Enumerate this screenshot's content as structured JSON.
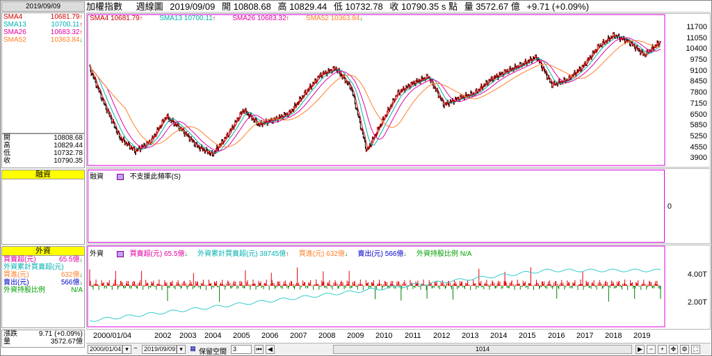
{
  "left": {
    "date": "2019/09/09",
    "sma": [
      {
        "label": "SMA4",
        "value": "10681.79",
        "dir": "up",
        "color": "#cc0000"
      },
      {
        "label": "SMA13",
        "value": "10700.11",
        "dir": "up",
        "color": "#00b0b0"
      },
      {
        "label": "SMA26",
        "value": "10683.32",
        "dir": "up",
        "color": "#e000a0"
      },
      {
        "label": "SMA52",
        "value": "10363.84",
        "dir": "down",
        "color": "#ff7f27"
      }
    ],
    "ohlc": [
      {
        "label": "開",
        "value": "10808.68"
      },
      {
        "label": "高",
        "value": "10829.44"
      },
      {
        "label": "低",
        "value": "10732.78"
      },
      {
        "label": "收",
        "value": "10790.35"
      }
    ],
    "margin_header": "融資",
    "foreign_header": "外資",
    "foreign_rows": [
      {
        "label": "買賣超(元)",
        "value": "65.5億",
        "dir": "down",
        "color": "#e000a0"
      },
      {
        "label": "外資累計買賣超(元)",
        "value": "",
        "dir": "",
        "color": "#00b0b0"
      },
      {
        "label": "買進(元)",
        "value": "632億",
        "dir": "down",
        "color": "#ff7f27"
      },
      {
        "label": "賣出(元)",
        "value": "566億",
        "dir": "down",
        "color": "#0000cc"
      },
      {
        "label": "外資持股比例",
        "value": "N/A",
        "dir": "",
        "color": "#00a000"
      }
    ],
    "change_label": "漲跌",
    "change_value": "9.71 (+0.09%)",
    "volume_label": "量",
    "volume_value": "3572.67億"
  },
  "topbar": {
    "name": "加權指數",
    "period": "週線圖",
    "date": "2019/09/09",
    "open": "開 10808.68",
    "high": "高 10829.44",
    "low": "低 10732.78",
    "close": "收 10790.35 s 點",
    "volume": "量 3572.67 億",
    "change": "+9.71 (+0.09%)"
  },
  "main_legend": [
    {
      "text": "SMA4 10681.79",
      "color": "#cc0000",
      "dir": "up"
    },
    {
      "text": "SMA13 10700.11",
      "color": "#00b0b0",
      "dir": "up"
    },
    {
      "text": "SMA26 10683.32",
      "color": "#e000a0",
      "dir": "up"
    },
    {
      "text": "SMA52 10363.84",
      "color": "#ff7f27",
      "dir": "down"
    }
  ],
  "y_ticks": [
    "11700",
    "11050",
    "10400",
    "9750",
    "9100",
    "8450",
    "7800",
    "7150",
    "6500",
    "5850",
    "5250",
    "4550",
    "3900"
  ],
  "margin_panel": {
    "title": "融資",
    "msg": "不支援此頻率(S)",
    "zero": "0"
  },
  "foreign_panel": {
    "title": "外資",
    "legend": [
      {
        "text": "買賣超(元) 65.5億",
        "color": "#e000a0",
        "dir": "down"
      },
      {
        "text": "外資累計買賣超(元) 38745億",
        "color": "#00b0b0",
        "dir": "up"
      },
      {
        "text": "買進(元) 632億",
        "color": "#ff7f27",
        "dir": "down"
      },
      {
        "text": "賣出(元) 566億",
        "color": "#0000cc",
        "dir": "down"
      },
      {
        "text": "外資持股比例 N/A",
        "color": "#00a000",
        "dir": ""
      }
    ],
    "y_ticks": [
      "4.00T",
      "2.00T"
    ]
  },
  "x_labels": [
    "2000/01/04",
    "2002",
    "2003",
    "2004",
    "2005",
    "2006",
    "2007",
    "2008",
    "2009",
    "2010",
    "2011",
    "2012",
    "2013",
    "2014",
    "2015",
    "2016",
    "2017",
    "2018",
    "2019"
  ],
  "bottom": {
    "start": "2000/01/04",
    "end": "2019/09/09",
    "keep_space": "保留空間",
    "keep_value": "3",
    "count": "1014"
  },
  "chart_data": {
    "type": "line",
    "title": "",
    "series": [
      {
        "name": "加權指數",
        "values": [
          9300,
          7000,
          5000,
          4200,
          4800,
          6300,
          5500,
          4500,
          4000,
          5200,
          6700,
          5800,
          6100,
          6500,
          7700,
          8800,
          9200,
          8000,
          4200,
          6000,
          7700,
          8300,
          8700,
          7000,
          7400,
          7700,
          8500,
          9000,
          9400,
          9900,
          8200,
          8500,
          9300,
          10500,
          11200,
          10800,
          10000,
          10800
        ]
      }
    ],
    "ylim": [
      3500,
      11900
    ]
  }
}
